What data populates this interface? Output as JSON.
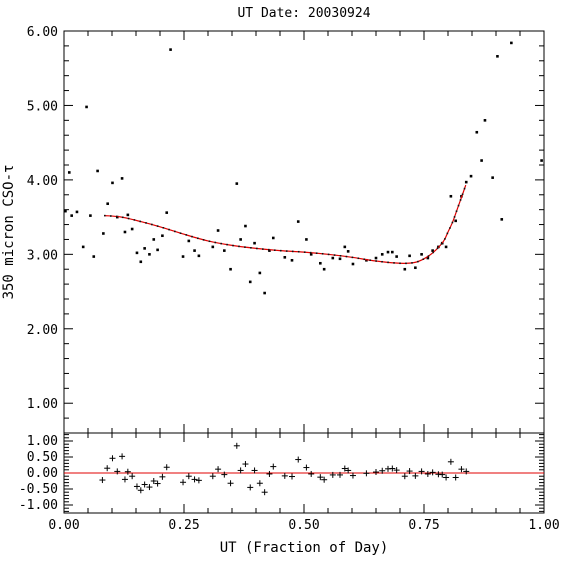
{
  "chart_data": {
    "type": "scatter",
    "title": "UT Date: 20030924",
    "xlabel": "UT (Fraction of Day)",
    "ylabel": "350 micron CSO-τ",
    "xlim": [
      0.0,
      1.0
    ],
    "ylim": [
      0.6,
      6.0
    ],
    "resid_ylim": [
      -1.25,
      1.25
    ],
    "x_ticks": [
      0.0,
      0.25,
      0.5,
      0.75,
      1.0
    ],
    "x_tick_labels": [
      "0.00",
      "0.25",
      "0.50",
      "0.75",
      "1.00"
    ],
    "y_ticks": [
      1.0,
      2.0,
      3.0,
      4.0,
      5.0,
      6.0
    ],
    "y_tick_labels": [
      "1.00",
      "2.00",
      "3.00",
      "4.00",
      "5.00",
      "6.00"
    ],
    "resid_ticks": [
      1.0,
      0.5,
      0.0,
      -0.5,
      -1.0
    ],
    "resid_tick_labels": [
      "1.00",
      "0.50",
      "0.00",
      "-0.50",
      "-1.00"
    ],
    "fit_color": "#e00000",
    "point_color": "#000000",
    "points": [
      [
        0.003,
        3.58
      ],
      [
        0.011,
        4.1
      ],
      [
        0.016,
        3.52
      ],
      [
        0.027,
        3.57
      ],
      [
        0.04,
        3.1
      ],
      [
        0.047,
        4.98
      ],
      [
        0.055,
        3.52
      ],
      [
        0.062,
        2.97
      ],
      [
        0.07,
        4.12
      ],
      [
        0.082,
        3.28
      ],
      [
        0.091,
        3.68
      ],
      [
        0.101,
        3.96
      ],
      [
        0.111,
        3.5
      ],
      [
        0.121,
        4.02
      ],
      [
        0.127,
        3.3
      ],
      [
        0.133,
        3.53
      ],
      [
        0.142,
        3.34
      ],
      [
        0.152,
        3.02
      ],
      [
        0.16,
        2.9
      ],
      [
        0.168,
        3.08
      ],
      [
        0.178,
        3.0
      ],
      [
        0.187,
        3.2
      ],
      [
        0.195,
        3.06
      ],
      [
        0.205,
        3.25
      ],
      [
        0.214,
        3.56
      ],
      [
        0.222,
        5.75
      ],
      [
        0.248,
        2.97
      ],
      [
        0.26,
        3.18
      ],
      [
        0.272,
        3.05
      ],
      [
        0.281,
        2.98
      ],
      [
        0.31,
        3.1
      ],
      [
        0.321,
        3.32
      ],
      [
        0.334,
        3.05
      ],
      [
        0.347,
        2.8
      ],
      [
        0.36,
        3.95
      ],
      [
        0.368,
        3.2
      ],
      [
        0.378,
        3.38
      ],
      [
        0.388,
        2.63
      ],
      [
        0.397,
        3.15
      ],
      [
        0.408,
        2.75
      ],
      [
        0.418,
        2.48
      ],
      [
        0.428,
        3.05
      ],
      [
        0.436,
        3.22
      ],
      [
        0.46,
        2.96
      ],
      [
        0.475,
        2.92
      ],
      [
        0.488,
        3.44
      ],
      [
        0.505,
        3.2
      ],
      [
        0.515,
        3.0
      ],
      [
        0.534,
        2.88
      ],
      [
        0.542,
        2.8
      ],
      [
        0.56,
        2.95
      ],
      [
        0.575,
        2.94
      ],
      [
        0.585,
        3.1
      ],
      [
        0.592,
        3.04
      ],
      [
        0.602,
        2.87
      ],
      [
        0.63,
        2.92
      ],
      [
        0.65,
        2.95
      ],
      [
        0.663,
        3.0
      ],
      [
        0.675,
        3.03
      ],
      [
        0.684,
        3.03
      ],
      [
        0.693,
        2.97
      ],
      [
        0.71,
        2.8
      ],
      [
        0.72,
        2.98
      ],
      [
        0.732,
        2.82
      ],
      [
        0.745,
        3.0
      ],
      [
        0.758,
        2.95
      ],
      [
        0.768,
        3.05
      ],
      [
        0.78,
        3.1
      ],
      [
        0.788,
        3.15
      ],
      [
        0.796,
        3.1
      ],
      [
        0.806,
        3.78
      ],
      [
        0.816,
        3.45
      ],
      [
        0.828,
        3.78
      ],
      [
        0.838,
        3.97
      ],
      [
        0.848,
        4.05
      ],
      [
        0.86,
        4.64
      ],
      [
        0.87,
        4.26
      ],
      [
        0.877,
        4.8
      ],
      [
        0.893,
        4.03
      ],
      [
        0.903,
        5.66
      ],
      [
        0.912,
        3.47
      ],
      [
        0.932,
        5.84
      ],
      [
        0.995,
        4.26
      ]
    ],
    "fit": [
      [
        0.085,
        3.52
      ],
      [
        0.12,
        3.5
      ],
      [
        0.16,
        3.44
      ],
      [
        0.2,
        3.37
      ],
      [
        0.25,
        3.27
      ],
      [
        0.3,
        3.18
      ],
      [
        0.35,
        3.12
      ],
      [
        0.4,
        3.08
      ],
      [
        0.45,
        3.05
      ],
      [
        0.5,
        3.03
      ],
      [
        0.55,
        3.0
      ],
      [
        0.6,
        2.96
      ],
      [
        0.65,
        2.91
      ],
      [
        0.7,
        2.88
      ],
      [
        0.73,
        2.89
      ],
      [
        0.75,
        2.94
      ],
      [
        0.77,
        3.03
      ],
      [
        0.79,
        3.17
      ],
      [
        0.8,
        3.3
      ],
      [
        0.81,
        3.44
      ],
      [
        0.82,
        3.62
      ],
      [
        0.83,
        3.8
      ],
      [
        0.837,
        3.93
      ]
    ],
    "residuals": [
      [
        0.08,
        -0.22
      ],
      [
        0.09,
        0.15
      ],
      [
        0.101,
        0.46
      ],
      [
        0.111,
        0.05
      ],
      [
        0.121,
        0.52
      ],
      [
        0.127,
        -0.2
      ],
      [
        0.133,
        0.04
      ],
      [
        0.142,
        -0.1
      ],
      [
        0.152,
        -0.42
      ],
      [
        0.16,
        -0.54
      ],
      [
        0.168,
        -0.36
      ],
      [
        0.178,
        -0.44
      ],
      [
        0.187,
        -0.25
      ],
      [
        0.195,
        -0.33
      ],
      [
        0.205,
        -0.12
      ],
      [
        0.214,
        0.18
      ],
      [
        0.248,
        -0.29
      ],
      [
        0.26,
        -0.1
      ],
      [
        0.272,
        -0.2
      ],
      [
        0.281,
        -0.23
      ],
      [
        0.31,
        -0.1
      ],
      [
        0.321,
        0.12
      ],
      [
        0.334,
        -0.05
      ],
      [
        0.347,
        -0.32
      ],
      [
        0.36,
        0.85
      ],
      [
        0.368,
        0.08
      ],
      [
        0.378,
        0.28
      ],
      [
        0.388,
        -0.45
      ],
      [
        0.397,
        0.08
      ],
      [
        0.408,
        -0.32
      ],
      [
        0.418,
        -0.6
      ],
      [
        0.428,
        -0.03
      ],
      [
        0.436,
        0.2
      ],
      [
        0.46,
        -0.09
      ],
      [
        0.475,
        -0.11
      ],
      [
        0.488,
        0.42
      ],
      [
        0.505,
        0.17
      ],
      [
        0.515,
        -0.03
      ],
      [
        0.534,
        -0.13
      ],
      [
        0.542,
        -0.21
      ],
      [
        0.56,
        -0.06
      ],
      [
        0.575,
        -0.06
      ],
      [
        0.585,
        0.14
      ],
      [
        0.592,
        0.08
      ],
      [
        0.602,
        -0.08
      ],
      [
        0.63,
        -0.01
      ],
      [
        0.65,
        0.03
      ],
      [
        0.663,
        0.07
      ],
      [
        0.675,
        0.13
      ],
      [
        0.684,
        0.14
      ],
      [
        0.693,
        0.09
      ],
      [
        0.71,
        -0.1
      ],
      [
        0.72,
        0.06
      ],
      [
        0.732,
        -0.09
      ],
      [
        0.745,
        0.05
      ],
      [
        0.758,
        -0.03
      ],
      [
        0.768,
        0.02
      ],
      [
        0.78,
        -0.04
      ],
      [
        0.788,
        -0.05
      ],
      [
        0.796,
        -0.14
      ],
      [
        0.806,
        0.35
      ],
      [
        0.816,
        -0.14
      ],
      [
        0.828,
        0.12
      ],
      [
        0.838,
        0.05
      ]
    ]
  }
}
